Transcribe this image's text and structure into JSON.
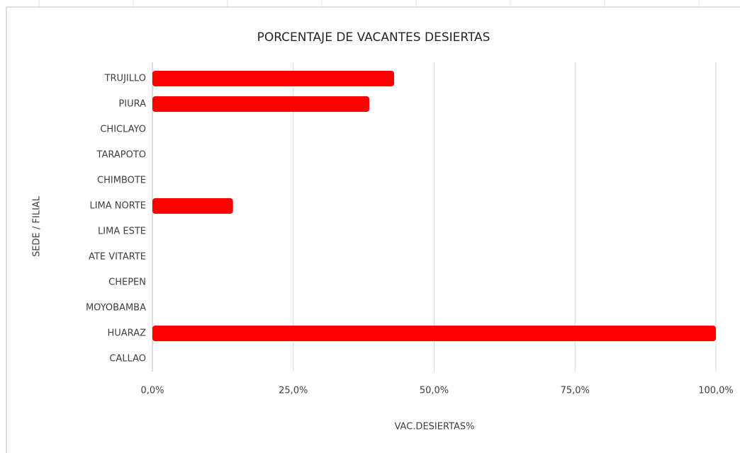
{
  "chart_data": {
    "type": "bar",
    "orientation": "horizontal",
    "title": "PORCENTAJE DE VACANTES DESIERTAS",
    "x_label": "VAC.DESIERTAS%",
    "y_label": "SEDE / FILIAL",
    "categories": [
      "TRUJILLO",
      "PIURA",
      "CHICLAYO",
      "TARAPOTO",
      "CHIMBOTE",
      "LIMA NORTE",
      "LIMA ESTE",
      "ATE VITARTE",
      "CHEPEN",
      "MOYOBAMBA",
      "HUARAZ",
      "CALLAO"
    ],
    "values": [
      42.9,
      38.5,
      0,
      0,
      0,
      14.3,
      0,
      0,
      0,
      0,
      100,
      0
    ],
    "color": "#ff0000",
    "xlim": [
      0,
      100
    ],
    "xticks": [
      {
        "value": 0,
        "label": "0,0%"
      },
      {
        "value": 25,
        "label": "25,0%"
      },
      {
        "value": 50,
        "label": "50,0%"
      },
      {
        "value": 75,
        "label": "75,0%"
      },
      {
        "value": 100,
        "label": "100,0%"
      }
    ],
    "grid": true
  }
}
